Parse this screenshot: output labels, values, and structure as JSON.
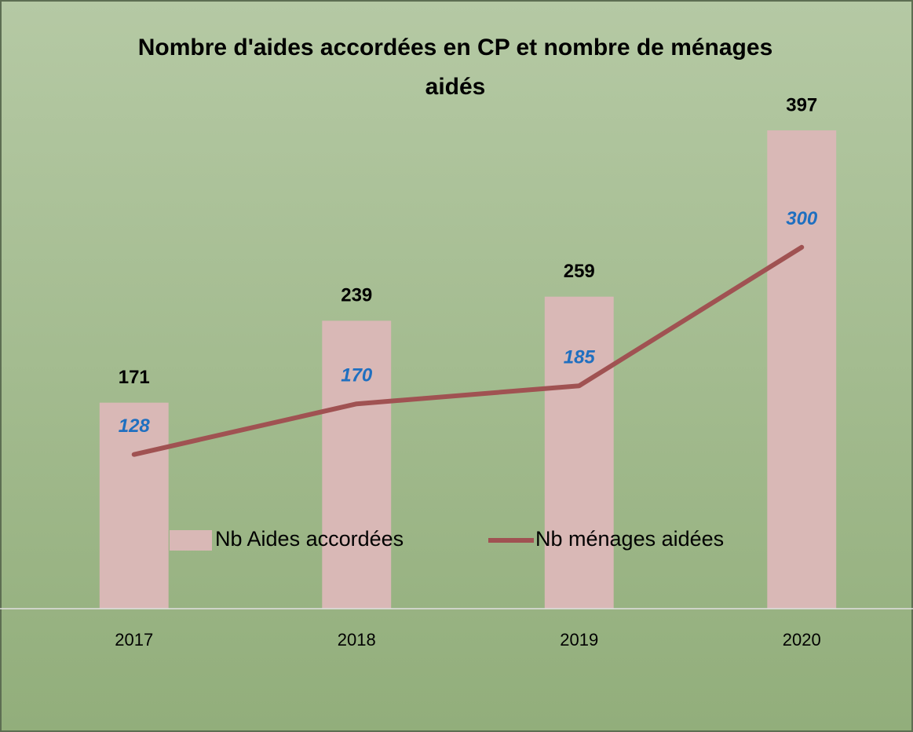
{
  "chart_data": {
    "type": "bar",
    "title": "Nombre d'aides accordées en CP et nombre de ménages aidés",
    "categories": [
      "2017",
      "2018",
      "2019",
      "2020"
    ],
    "series": [
      {
        "name": "Nb Aides accordées",
        "type": "bar",
        "color": "#d9b8b6",
        "values": [
          171,
          239,
          259,
          397
        ]
      },
      {
        "name": "Nb ménages aidées",
        "type": "line",
        "color": "#a05252",
        "values": [
          128,
          170,
          185,
          300
        ]
      }
    ],
    "ylim": [
      0,
      420
    ],
    "legend": "bottom"
  }
}
